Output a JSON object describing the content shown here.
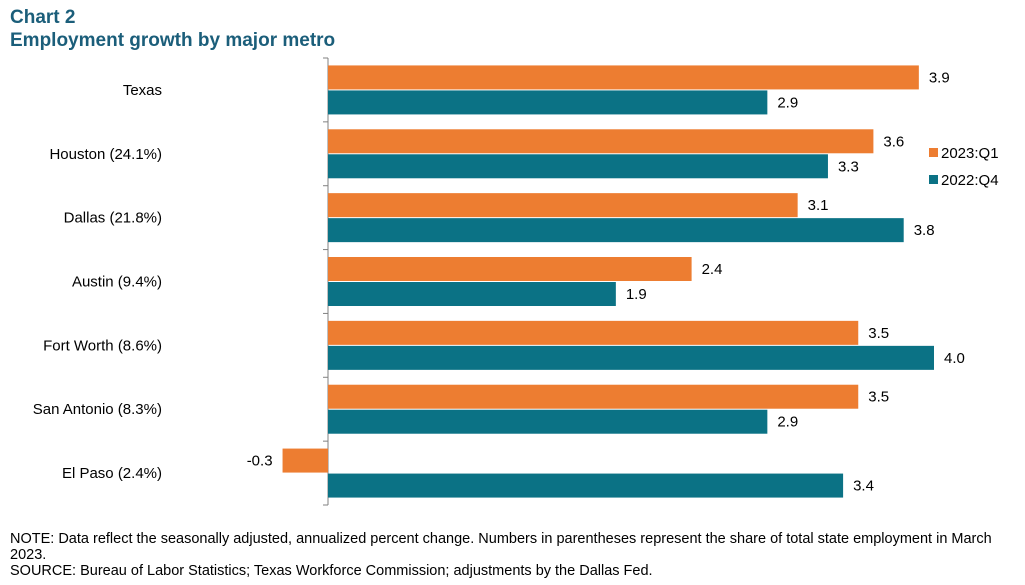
{
  "header": {
    "label": "Chart 2",
    "title": "Employment  growth by major metro"
  },
  "colors": {
    "series_2023_q1": "#ed7d31",
    "series_2022_q4": "#0b7285",
    "title": "#1b5e7a",
    "axis": "#808080"
  },
  "chart_data": {
    "type": "bar",
    "orientation": "horizontal",
    "title": "Employment  growth by major metro",
    "xlabel": "",
    "ylabel": "",
    "categories": [
      "Texas",
      "Houston (24.1%)",
      "Dallas (21.8%)",
      "Austin (9.4%)",
      "Fort Worth (8.6%)",
      "San Antonio (8.3%)",
      "El Paso (2.4%)"
    ],
    "series": [
      {
        "name": "2023:Q1",
        "values": [
          3.9,
          3.6,
          3.1,
          2.4,
          3.5,
          3.5,
          -0.3
        ],
        "labels": [
          "3.9",
          "3.6",
          "3.1",
          "2.4",
          "3.5",
          "3.5",
          "-0.3"
        ]
      },
      {
        "name": "2022:Q4",
        "values": [
          2.9,
          3.3,
          3.8,
          1.9,
          4.0,
          2.9,
          3.4
        ],
        "labels": [
          "2.9",
          "3.3",
          "3.8",
          "1.9",
          "4.0",
          "2.9",
          "3.4"
        ]
      }
    ],
    "xlim": [
      -0.3,
      4.0
    ],
    "legend": {
      "position": "right",
      "entries": [
        "2023:Q1",
        "2022:Q4"
      ]
    },
    "grid": false
  },
  "notes": {
    "note": "NOTE: Data reflect the seasonally adjusted, annualized percent change. Numbers in parentheses represent the share of total state employment in March 2023.",
    "source": "SOURCE: Bureau of Labor Statistics; Texas Workforce Commission; adjustments by the Dallas Fed."
  }
}
